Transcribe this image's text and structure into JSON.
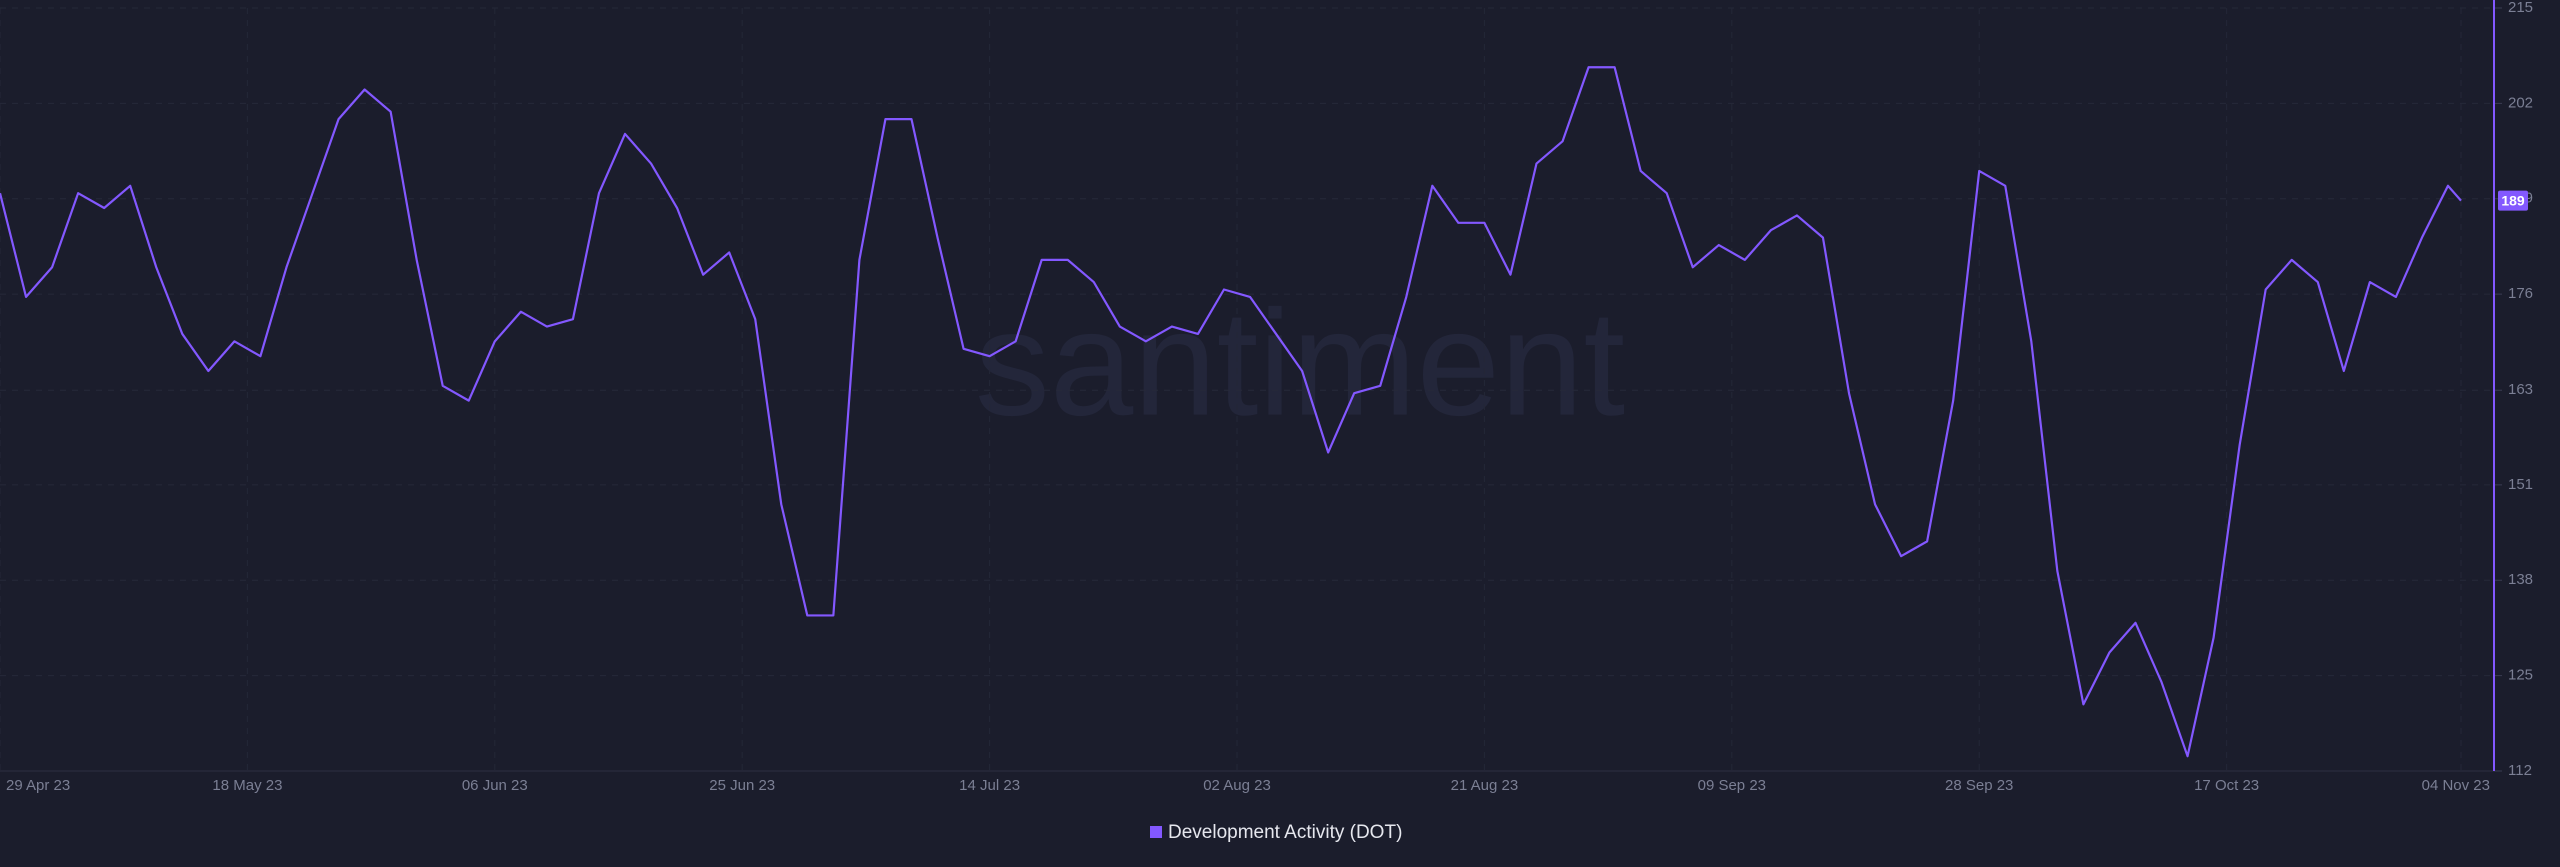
{
  "chart_data": {
    "type": "line",
    "watermark": "santiment",
    "x": [
      "2023-04-29",
      "2023-05-01",
      "2023-05-03",
      "2023-05-05",
      "2023-05-07",
      "2023-05-09",
      "2023-05-11",
      "2023-05-13",
      "2023-05-15",
      "2023-05-17",
      "2023-05-19",
      "2023-05-21",
      "2023-05-23",
      "2023-05-25",
      "2023-05-27",
      "2023-05-29",
      "2023-05-31",
      "2023-06-02",
      "2023-06-04",
      "2023-06-06",
      "2023-06-08",
      "2023-06-10",
      "2023-06-12",
      "2023-06-14",
      "2023-06-16",
      "2023-06-18",
      "2023-06-20",
      "2023-06-22",
      "2023-06-24",
      "2023-06-26",
      "2023-06-28",
      "2023-06-30",
      "2023-07-02",
      "2023-07-04",
      "2023-07-06",
      "2023-07-08",
      "2023-07-10",
      "2023-07-12",
      "2023-07-14",
      "2023-07-16",
      "2023-07-18",
      "2023-07-20",
      "2023-07-22",
      "2023-07-24",
      "2023-07-26",
      "2023-07-28",
      "2023-07-30",
      "2023-08-01",
      "2023-08-03",
      "2023-08-05",
      "2023-08-07",
      "2023-08-09",
      "2023-08-11",
      "2023-08-13",
      "2023-08-15",
      "2023-08-17",
      "2023-08-19",
      "2023-08-21",
      "2023-08-23",
      "2023-08-25",
      "2023-08-27",
      "2023-08-29",
      "2023-08-31",
      "2023-09-02",
      "2023-09-04",
      "2023-09-06",
      "2023-09-08",
      "2023-09-10",
      "2023-09-12",
      "2023-09-14",
      "2023-09-16",
      "2023-09-18",
      "2023-09-20",
      "2023-09-22",
      "2023-09-24",
      "2023-09-26",
      "2023-09-28",
      "2023-09-30",
      "2023-10-02",
      "2023-10-04",
      "2023-10-06",
      "2023-10-08",
      "2023-10-10",
      "2023-10-12",
      "2023-10-14",
      "2023-10-16",
      "2023-10-18",
      "2023-10-20",
      "2023-10-22",
      "2023-10-24",
      "2023-10-26",
      "2023-10-28",
      "2023-10-30",
      "2023-11-01",
      "2023-11-03",
      "2023-11-04"
    ],
    "series": [
      {
        "name": "Development Activity (DOT)",
        "color": "#8358ff",
        "values": [
          190,
          176,
          180,
          190,
          188,
          191,
          180,
          171,
          166,
          170,
          168,
          180,
          190,
          200,
          204,
          201,
          181,
          164,
          162,
          170,
          174,
          172,
          173,
          190,
          198,
          194,
          188,
          179,
          182,
          173,
          148,
          133,
          133,
          181,
          200,
          200,
          184,
          169,
          168,
          170,
          181,
          181,
          178,
          172,
          170,
          172,
          171,
          177,
          176,
          171,
          166,
          155,
          163,
          164,
          176,
          191,
          186,
          186,
          179,
          194,
          197,
          207,
          207,
          193,
          190,
          180,
          183,
          181,
          185,
          187,
          184,
          163,
          148,
          141,
          143,
          162,
          193,
          191,
          170,
          139,
          121,
          128,
          132,
          124,
          114,
          130,
          156,
          177,
          181,
          178,
          166,
          178,
          176,
          184,
          191,
          189
        ]
      }
    ],
    "xlim": [
      "2023-04-29",
      "2023-11-04"
    ],
    "xticks": [
      {
        "value": "2023-04-29",
        "label": "29 Apr 23"
      },
      {
        "value": "2023-05-18",
        "label": "18 May 23"
      },
      {
        "value": "2023-06-06",
        "label": "06 Jun 23"
      },
      {
        "value": "2023-06-25",
        "label": "25 Jun 23"
      },
      {
        "value": "2023-07-14",
        "label": "14 Jul 23"
      },
      {
        "value": "2023-08-02",
        "label": "02 Aug 23"
      },
      {
        "value": "2023-08-21",
        "label": "21 Aug 23"
      },
      {
        "value": "2023-09-09",
        "label": "09 Sep 23"
      },
      {
        "value": "2023-09-28",
        "label": "28 Sep 23"
      },
      {
        "value": "2023-10-17",
        "label": "17 Oct 23"
      },
      {
        "value": "2023-11-04",
        "label": "04 Nov 23"
      }
    ],
    "ylim": [
      112,
      215
    ],
    "yticks": [
      112,
      {
        "value": 124.875,
        "label": "125"
      },
      {
        "value": 137.75,
        "label": "138"
      },
      {
        "value": 150.625,
        "label": "151"
      },
      {
        "value": 163.4,
        "label": "163"
      },
      {
        "value": 176.375,
        "label": "176"
      },
      {
        "value": 189.25,
        "label": "189"
      },
      {
        "value": 202.125,
        "label": "202"
      },
      215
    ],
    "grid": true
  }
}
